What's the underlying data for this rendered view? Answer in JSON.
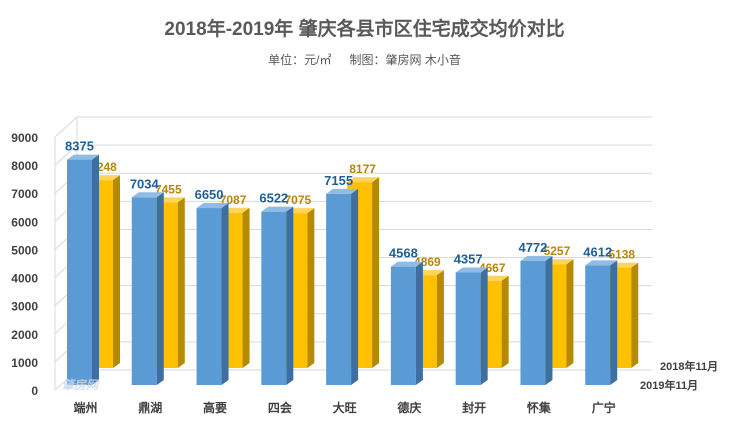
{
  "title": "2018年-2019年 肇庆各县市区住宅成交均价对比",
  "subtitle_unit": "单位：元/㎡",
  "subtitle_credit": "制图：肇房网 木小音",
  "watermark": "肇房网",
  "colors": {
    "series_2019": "#5b9bd5",
    "series_2019_side": "#3d6fa0",
    "series_2019_label": "#1f5f99",
    "series_2018": "#ffc000",
    "series_2018_side": "#b58900",
    "series_2018_label": "#b8860b",
    "grid": "#d9d9d9",
    "axis_text": "#404040"
  },
  "chart_data": {
    "type": "bar",
    "categories": [
      "端州",
      "鼎湖",
      "高要",
      "四会",
      "大旺",
      "德庆",
      "封开",
      "怀集",
      "广宁"
    ],
    "series": [
      {
        "name": "2019年11月",
        "values": [
          8375,
          7034,
          6650,
          6522,
          7155,
          4568,
          4357,
          4772,
          4612
        ]
      },
      {
        "name": "2018年11月",
        "values": [
          8248,
          7455,
          7087,
          7075,
          8177,
          4869,
          4667,
          5257,
          5138
        ]
      }
    ],
    "ylim": [
      0,
      9000
    ],
    "yticks": [
      0,
      1000,
      2000,
      3000,
      4000,
      5000,
      6000,
      7000,
      8000,
      9000
    ],
    "grid": true,
    "3d": true,
    "legend_position": "right-depth-axis"
  }
}
